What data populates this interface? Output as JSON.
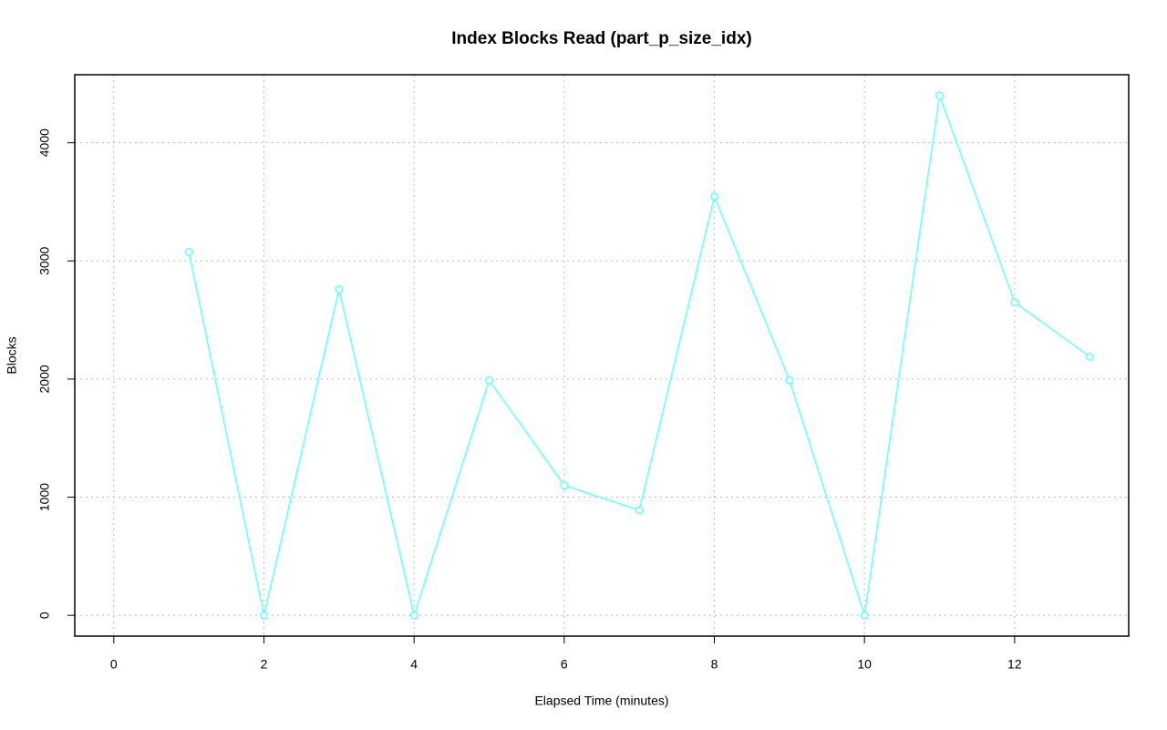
{
  "chart_data": {
    "type": "line",
    "title": "Index Blocks Read (part_p_size_idx)",
    "x_label": "Elapsed Time (minutes)",
    "y_label": "Blocks",
    "x": [
      1,
      2,
      3,
      4,
      5,
      6,
      7,
      8,
      9,
      10,
      11,
      12,
      13
    ],
    "series": [
      {
        "color": "#66ffff",
        "values": [
          3075,
          0,
          2760,
          0,
          1990,
          1100,
          890,
          3545,
          1990,
          0,
          4400,
          2650,
          2190
        ]
      }
    ],
    "xlim": [
      -0.52,
      13.52
    ],
    "xticks": [
      0,
      2,
      4,
      6,
      8,
      10,
      12
    ],
    "ylim": [
      -176,
      4576
    ],
    "yticks": [
      0,
      1000,
      2000,
      3000,
      4000
    ],
    "grid": true
  }
}
